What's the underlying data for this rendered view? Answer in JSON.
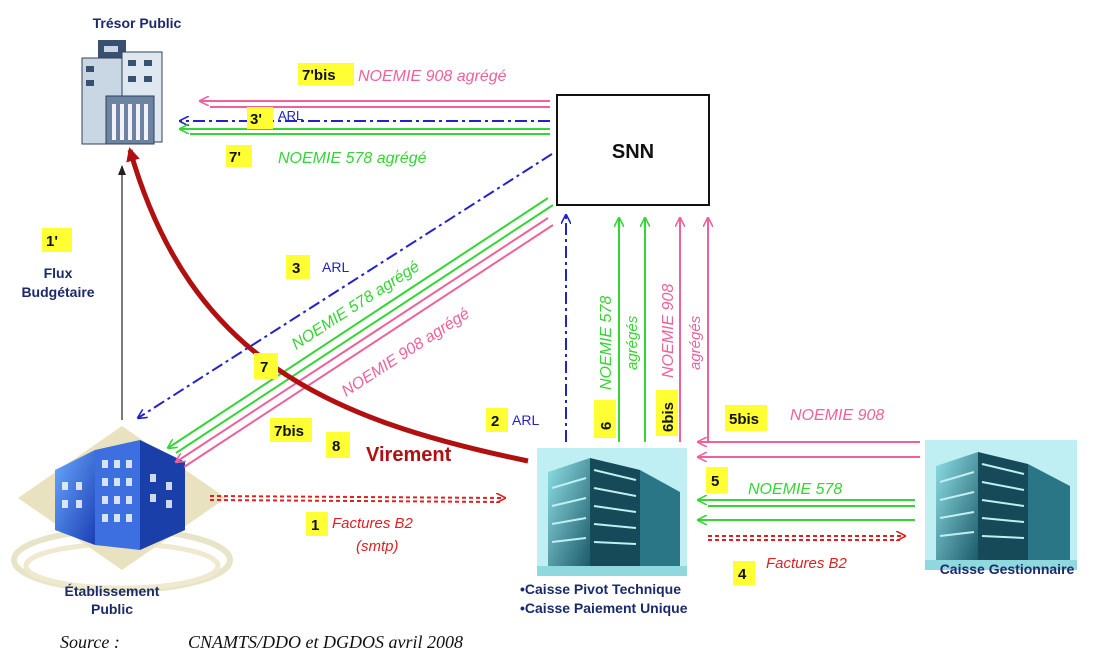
{
  "nodes": {
    "tresor": "Trésor Public",
    "snn": "SNN",
    "etablissement_line1": "Établissement",
    "etablissement_line2": "Public",
    "caisse_pivot_line1": "•Caisse Pivot Technique",
    "caisse_pivot_line2": "•Caisse Paiement Unique",
    "caisse_gestionnaire": "Caisse Gestionnaire"
  },
  "flows": {
    "f7bis_top_num": "7'bis",
    "f7bis_top_text": "NOEMIE 908 agrégé",
    "f3p_num": "3'",
    "f3p_text": "ARL",
    "f7p_num": "7'",
    "f7p_text": "NOEMIE 578 agrégé",
    "f1p_num": "1'",
    "f1p_text_line1": "Flux",
    "f1p_text_line2": "Budgétaire",
    "f3_num": "3",
    "f3_text": "ARL",
    "f7_num": "7",
    "f7_text": "NOEMIE 578 agrégé",
    "f7bis_num": "7bis",
    "f7bis_text": "NOEMIE 908 agrégé",
    "f8_num": "8",
    "f8_text": "Virement",
    "f2_num": "2",
    "f2_text": "ARL",
    "f6_num": "6",
    "f6_text_line1": "NOEMIE 578",
    "f6_text_line2": "agrégés",
    "f6bis_num": "6bis",
    "f6bis_text_line1": "NOEMIE 908",
    "f6bis_text_line2": "agrégés",
    "f5bis_num": "5bis",
    "f5bis_text": "NOEMIE 908",
    "f5_num": "5",
    "f5_text": "NOEMIE 578",
    "f1_num": "1",
    "f1_text_line1": "Factures B2",
    "f1_text_line2": "(smtp)",
    "f4_num": "4",
    "f4_text": "Factures B2"
  },
  "source": {
    "label": "Source :",
    "text": "CNAMTS/DDO et DGDOS avril 2008"
  },
  "colors": {
    "pink": "#f0609a",
    "green": "#33d633",
    "blue": "#2222cc",
    "red": "#e02020",
    "darkred": "#b01010",
    "badge": "#ffff33"
  }
}
